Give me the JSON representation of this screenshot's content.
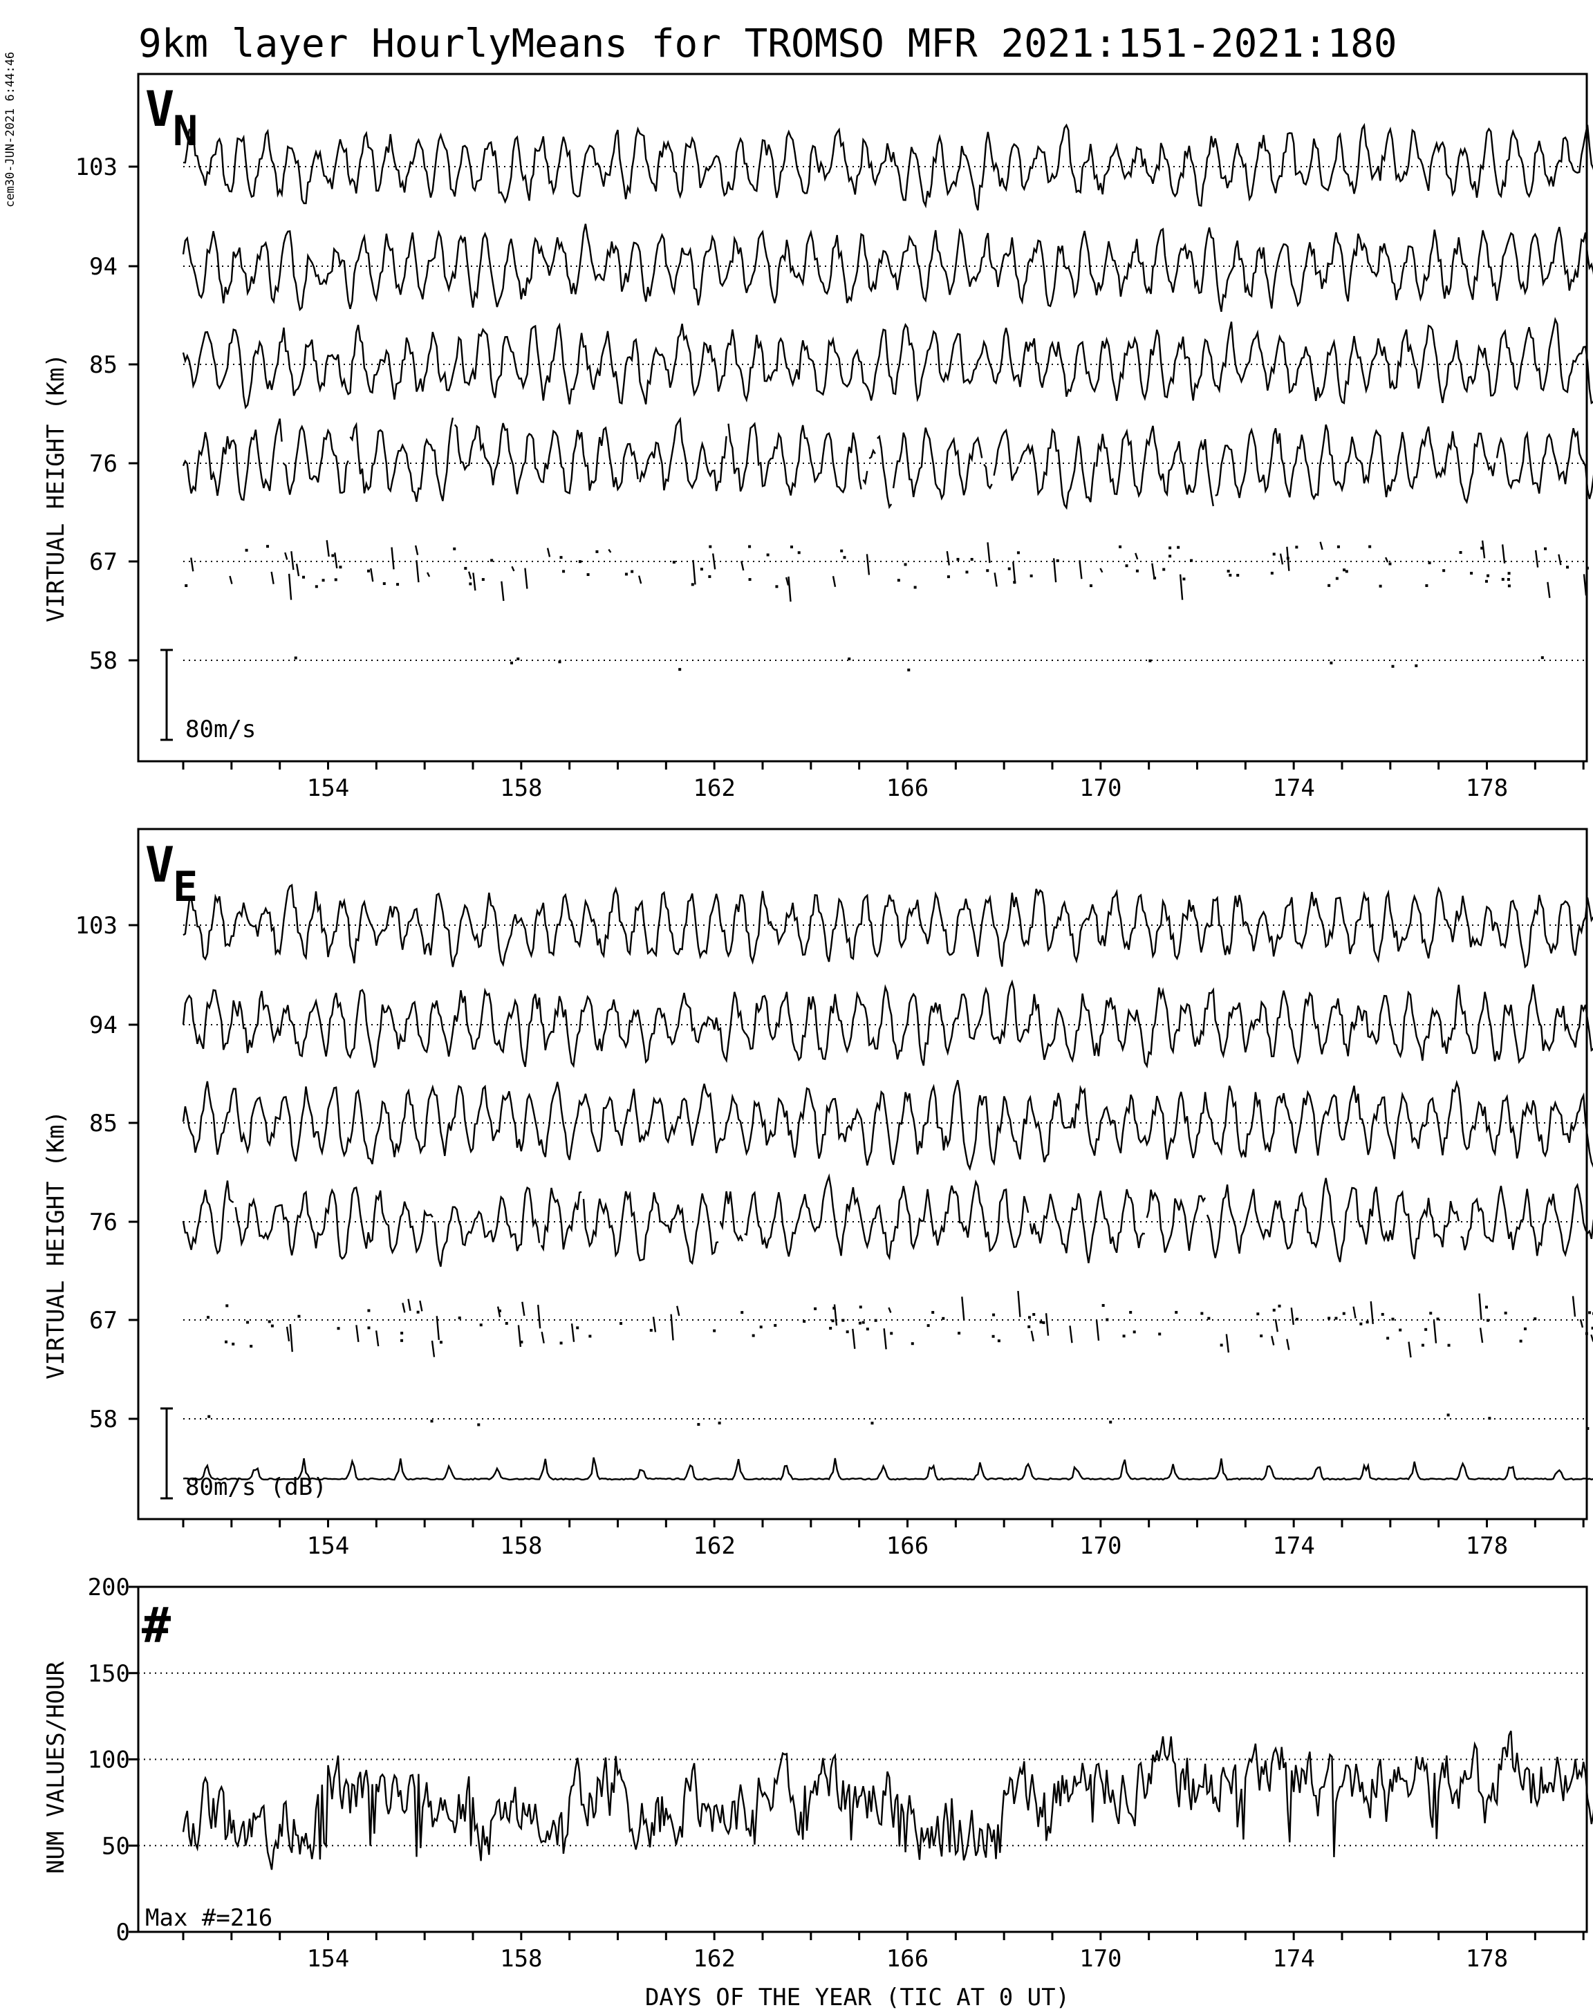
{
  "stamp": "cem30-JUN-2021  6:44:46",
  "title": "9km layer HourlyMeans for TROMSO MFR 2021:151-2021:180",
  "colors": {
    "line": "#000000",
    "background": "#ffffff"
  },
  "chart_data": [
    {
      "type": "line",
      "panel_label": "V",
      "panel_label_sub": "N",
      "ylabel": "VIRTUAL HEIGHT (Km)",
      "yticks": [
        103,
        94,
        85,
        76,
        67,
        58
      ],
      "xticks": [
        154,
        158,
        162,
        166,
        170,
        174,
        178
      ],
      "xlim": [
        151,
        181
      ],
      "grid": true,
      "scale_bar": "80m/s",
      "scale_bar_value_ms": 80,
      "series": [
        {
          "height_km": 103,
          "coverage": "continuous"
        },
        {
          "height_km": 94,
          "coverage": "continuous"
        },
        {
          "height_km": 85,
          "coverage": "continuous"
        },
        {
          "height_km": 76,
          "coverage": "mostly continuous"
        },
        {
          "height_km": 67,
          "coverage": "sparse"
        },
        {
          "height_km": 58,
          "coverage": "isolated points"
        }
      ]
    },
    {
      "type": "line",
      "panel_label": "V",
      "panel_label_sub": "E",
      "ylabel": "VIRTUAL HEIGHT (Km)",
      "yticks": [
        103,
        94,
        85,
        76,
        67,
        58
      ],
      "xticks": [
        154,
        158,
        162,
        166,
        170,
        174,
        178
      ],
      "xlim": [
        151,
        181
      ],
      "grid": true,
      "scale_bar": "80m/s (dB)",
      "scale_bar_value_ms": 80,
      "series": [
        {
          "height_km": 103,
          "coverage": "continuous"
        },
        {
          "height_km": 94,
          "coverage": "continuous"
        },
        {
          "height_km": 85,
          "coverage": "continuous"
        },
        {
          "height_km": 76,
          "coverage": "mostly continuous"
        },
        {
          "height_km": 67,
          "coverage": "sparse"
        },
        {
          "height_km": 58,
          "coverage": "isolated points"
        },
        {
          "name": "dB",
          "coverage": "continuous baseline with daily peaks"
        }
      ]
    },
    {
      "type": "line",
      "panel_label": "#",
      "ylabel": "NUM VALUES/HOUR",
      "xlabel": "DAYS OF THE YEAR (TIC AT 0 UT)",
      "yticks": [
        0,
        50,
        100,
        150,
        200
      ],
      "ylim": [
        0,
        200
      ],
      "xticks": [
        154,
        158,
        162,
        166,
        170,
        174,
        178
      ],
      "xlim": [
        151,
        181
      ],
      "grid": true,
      "annotation": "Max #=216",
      "x_days": [
        151,
        152,
        153,
        154,
        155,
        156,
        157,
        158,
        159,
        160,
        161,
        162,
        163,
        164,
        165,
        166,
        167,
        168,
        169,
        170,
        171,
        172,
        173,
        174,
        175,
        176,
        177,
        178,
        179,
        180
      ],
      "daily_mean_values": [
        70,
        62,
        66,
        80,
        78,
        72,
        62,
        66,
        82,
        72,
        76,
        70,
        76,
        82,
        78,
        62,
        60,
        78,
        84,
        86,
        92,
        86,
        90,
        86,
        90,
        96,
        90,
        96,
        94,
        86
      ]
    }
  ]
}
